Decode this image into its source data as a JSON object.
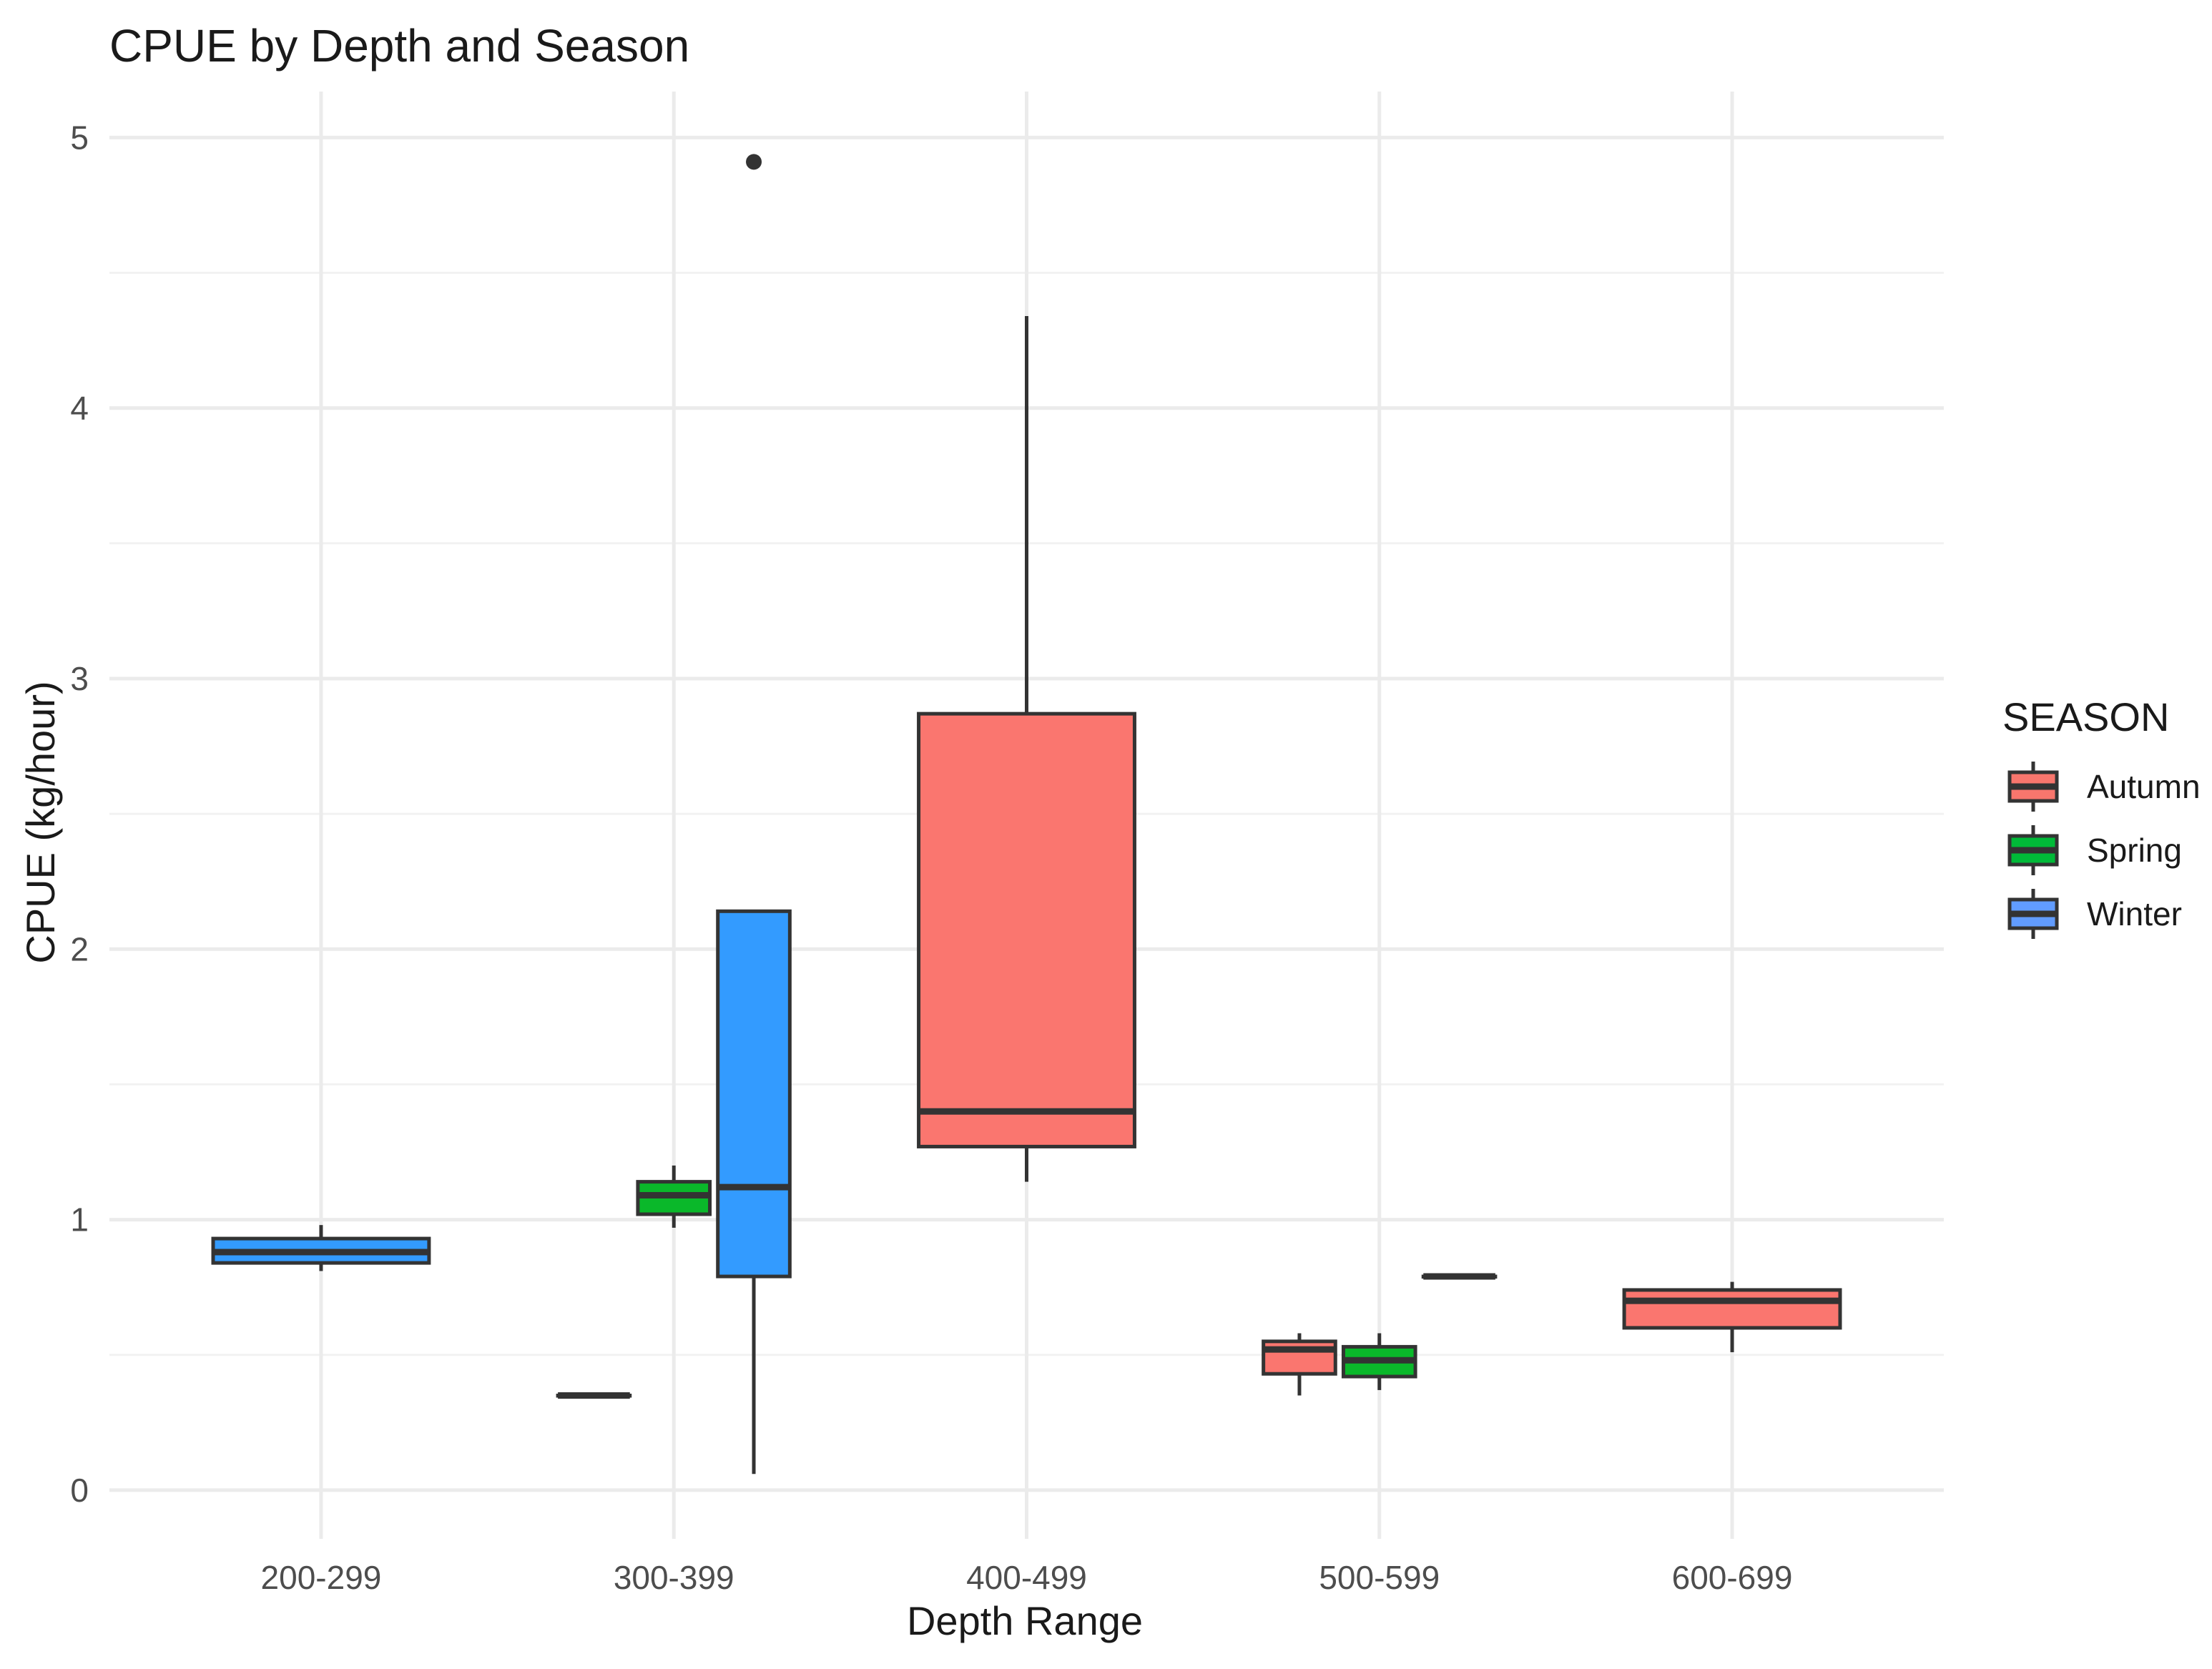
{
  "chart_data": {
    "type": "boxplot",
    "title": "CPUE by Depth and Season",
    "xlabel": "Depth Range",
    "ylabel": "CPUE (kg/hour)",
    "ylim": [
      -0.18,
      5.17
    ],
    "yticks": [
      0,
      1,
      2,
      3,
      4,
      5
    ],
    "yticks_minor": [
      0.5,
      1.5,
      2.5,
      3.5,
      4.5
    ],
    "categories": [
      "200-299",
      "300-399",
      "400-499",
      "500-599",
      "600-699"
    ],
    "legend": {
      "title": "SEASON",
      "position": "right",
      "entries": [
        {
          "name": "Autumn",
          "color": "#F8766D"
        },
        {
          "name": "Spring",
          "color": "#00BA38"
        },
        {
          "name": "Winter",
          "color": "#619CFF"
        }
      ]
    },
    "colors": {
      "Autumn": "#FA766F",
      "Spring": "#0AB82A",
      "Winter": "#339BFF"
    },
    "boxes": [
      {
        "category": "200-299",
        "season": "Winter",
        "slot": 0,
        "nslots": 1,
        "min": 0.81,
        "q1": 0.84,
        "median": 0.88,
        "q3": 0.93,
        "max": 0.98,
        "outliers": []
      },
      {
        "category": "300-399",
        "season": "Autumn",
        "slot": 0,
        "nslots": 3,
        "min": 0.35,
        "q1": 0.35,
        "median": 0.35,
        "q3": 0.35,
        "max": 0.35,
        "outliers": []
      },
      {
        "category": "300-399",
        "season": "Spring",
        "slot": 1,
        "nslots": 3,
        "min": 0.97,
        "q1": 1.02,
        "median": 1.09,
        "q3": 1.14,
        "max": 1.2,
        "outliers": []
      },
      {
        "category": "300-399",
        "season": "Winter",
        "slot": 2,
        "nslots": 3,
        "min": 0.06,
        "q1": 0.79,
        "median": 1.12,
        "q3": 2.14,
        "max": 2.14,
        "outliers": [
          4.91
        ]
      },
      {
        "category": "400-499",
        "season": "Autumn",
        "slot": 0,
        "nslots": 1,
        "min": 1.14,
        "q1": 1.27,
        "median": 1.4,
        "q3": 2.87,
        "max": 4.34,
        "outliers": []
      },
      {
        "category": "500-599",
        "season": "Autumn",
        "slot": 0,
        "nslots": 3,
        "min": 0.35,
        "q1": 0.43,
        "median": 0.52,
        "q3": 0.55,
        "max": 0.58,
        "outliers": []
      },
      {
        "category": "500-599",
        "season": "Spring",
        "slot": 1,
        "nslots": 3,
        "min": 0.37,
        "q1": 0.42,
        "median": 0.48,
        "q3": 0.53,
        "max": 0.58,
        "outliers": []
      },
      {
        "category": "500-599",
        "season": "Winter",
        "slot": 2,
        "nslots": 3,
        "min": 0.79,
        "q1": 0.79,
        "median": 0.79,
        "q3": 0.79,
        "max": 0.79,
        "outliers": []
      },
      {
        "category": "600-699",
        "season": "Autumn",
        "slot": 0,
        "nslots": 1,
        "min": 0.51,
        "q1": 0.6,
        "median": 0.7,
        "q3": 0.74,
        "max": 0.77,
        "outliers": []
      }
    ]
  }
}
